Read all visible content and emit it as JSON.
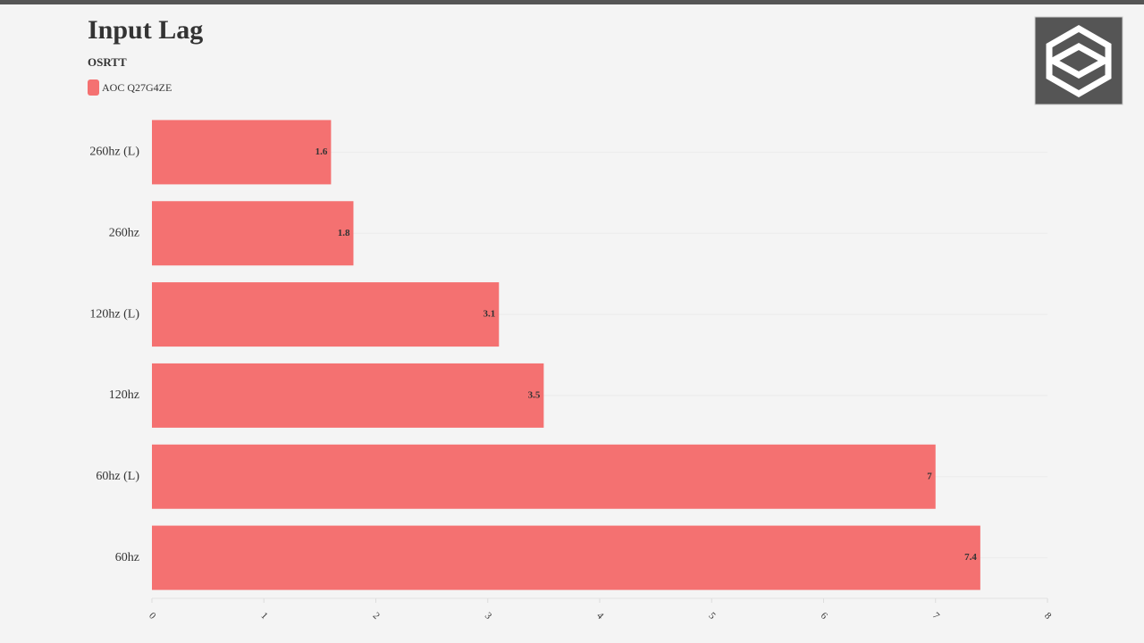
{
  "chart_data": {
    "type": "hbar",
    "title": "Input Lag",
    "subtitle": "OSRTT",
    "categories": [
      "260hz (L)",
      "260hz",
      "120hz (L)",
      "120hz",
      "60hz (L)",
      "60hz"
    ],
    "series": [
      {
        "name": "AOC Q27G4ZE",
        "color": "#f47171",
        "values": [
          1.6,
          1.8,
          3.1,
          3.5,
          7,
          7.4
        ]
      }
    ],
    "xlim": [
      0,
      8
    ],
    "xticks": [
      0,
      1,
      2,
      3,
      4,
      5,
      6,
      7,
      8
    ],
    "grid": true
  }
}
